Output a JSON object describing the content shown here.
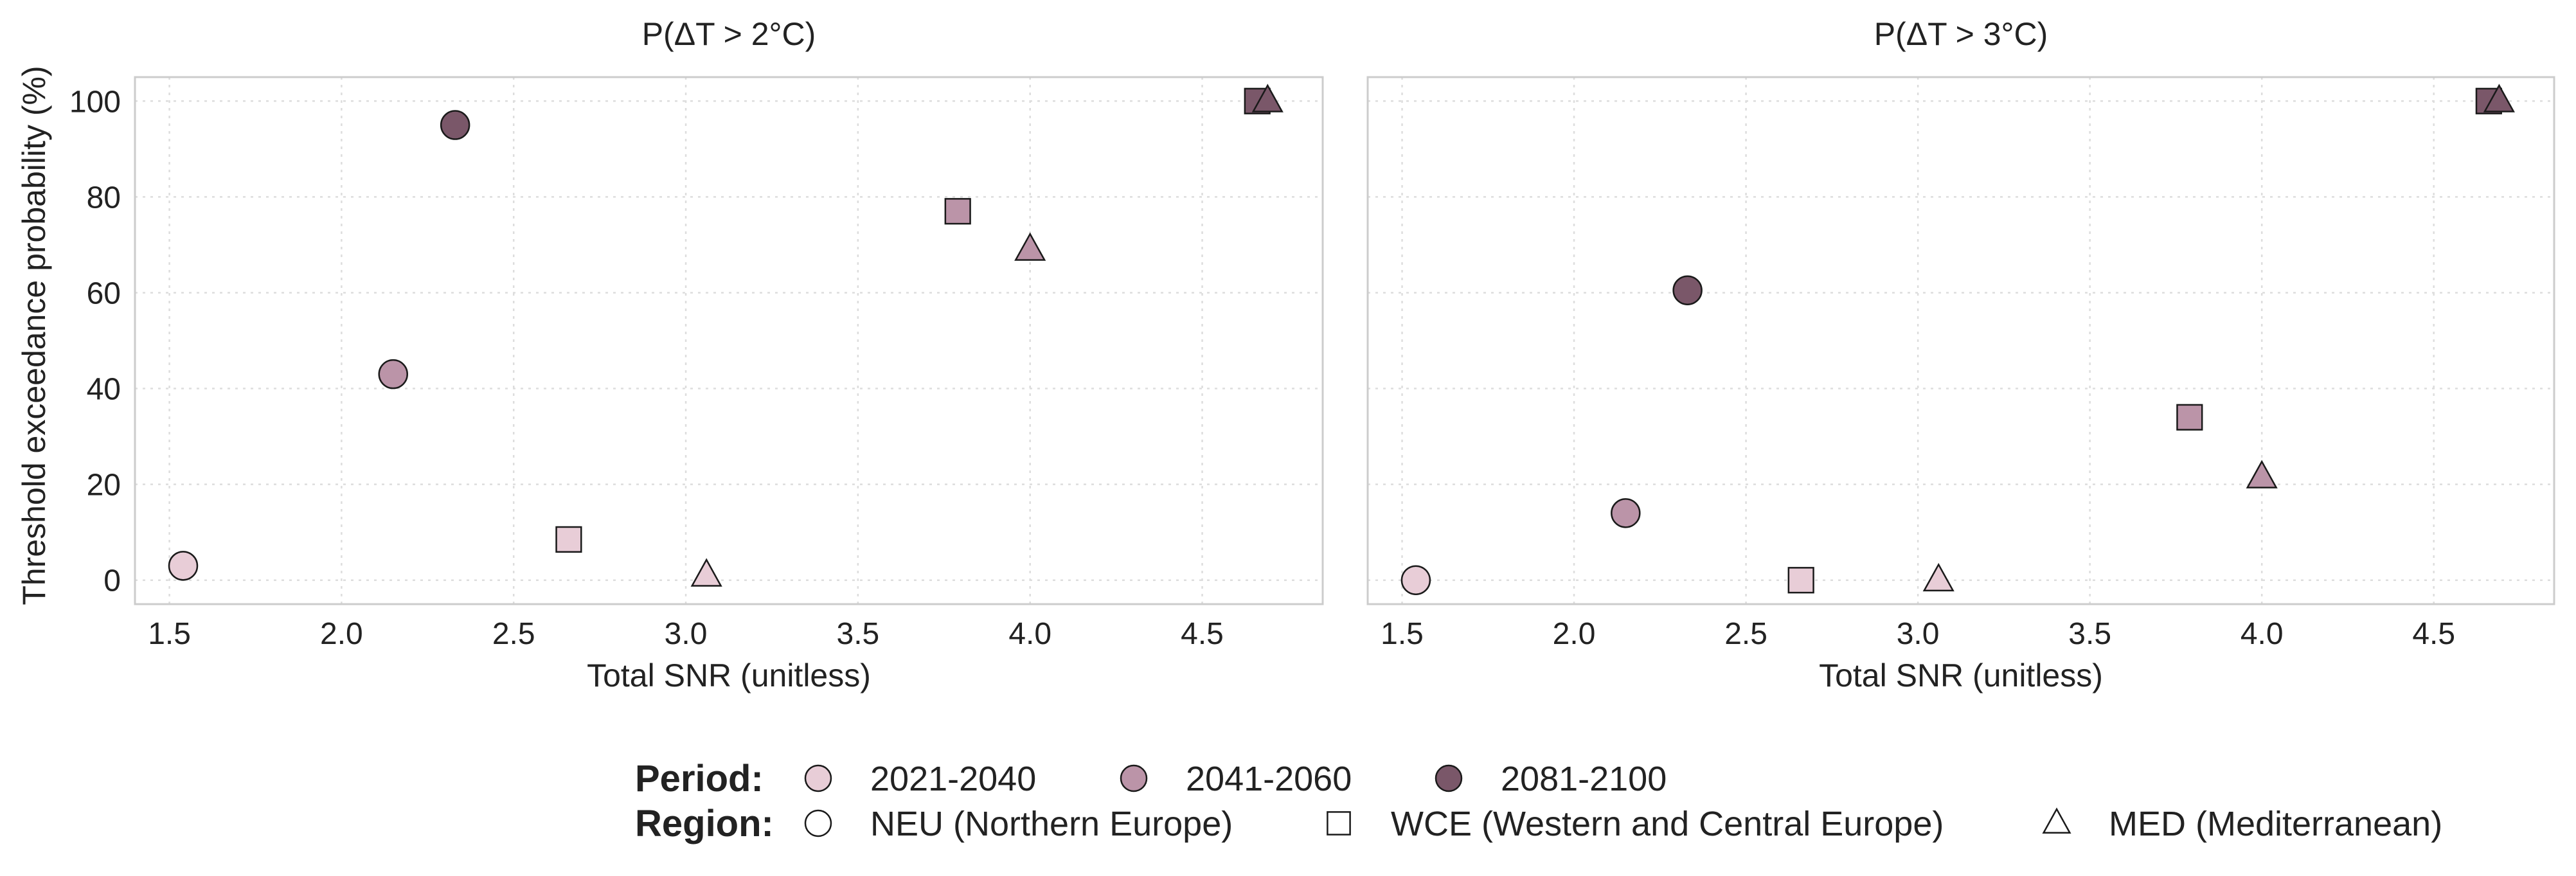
{
  "chart_data": [
    {
      "type": "scatter",
      "title": "P(ΔT > 2°C)",
      "xlabel": "Total SNR (unitless)",
      "ylabel": "Threshold exceedance probability (%)",
      "xlim": [
        1.4,
        4.85
      ],
      "ylim": [
        -5,
        105
      ],
      "x_ticks": [
        1.5,
        2.0,
        2.5,
        3.0,
        3.5,
        4.0,
        4.5
      ],
      "y_ticks": [
        0,
        20,
        40,
        60,
        80,
        100
      ],
      "grid": true,
      "series": [
        {
          "period": "2021-2040",
          "region": "NEU (Northern Europe)",
          "marker": "circle",
          "x": 1.54,
          "y": 3
        },
        {
          "period": "2041-2060",
          "region": "NEU (Northern Europe)",
          "marker": "circle",
          "x": 2.15,
          "y": 43
        },
        {
          "period": "2081-2100",
          "region": "NEU (Northern Europe)",
          "marker": "circle",
          "x": 2.33,
          "y": 95
        },
        {
          "period": "2021-2040",
          "region": "WCE (Western and Central Europe)",
          "marker": "square",
          "x": 2.66,
          "y": 8.5
        },
        {
          "period": "2041-2060",
          "region": "WCE (Western and Central Europe)",
          "marker": "square",
          "x": 3.79,
          "y": 77
        },
        {
          "period": "2081-2100",
          "region": "WCE (Western and Central Europe)",
          "marker": "square",
          "x": 4.66,
          "y": 100
        },
        {
          "period": "2021-2040",
          "region": "MED (Mediterranean)",
          "marker": "triangle",
          "x": 3.06,
          "y": 1
        },
        {
          "period": "2041-2060",
          "region": "MED (Mediterranean)",
          "marker": "triangle",
          "x": 4.0,
          "y": 69
        },
        {
          "period": "2081-2100",
          "region": "MED (Mediterranean)",
          "marker": "triangle",
          "x": 4.69,
          "y": 100
        }
      ]
    },
    {
      "type": "scatter",
      "title": "P(ΔT > 3°C)",
      "xlabel": "Total SNR (unitless)",
      "ylabel": "",
      "xlim": [
        1.4,
        4.85
      ],
      "ylim": [
        -5,
        105
      ],
      "x_ticks": [
        1.5,
        2.0,
        2.5,
        3.0,
        3.5,
        4.0,
        4.5
      ],
      "y_ticks": [
        0,
        20,
        40,
        60,
        80,
        100
      ],
      "grid": true,
      "series": [
        {
          "period": "2021-2040",
          "region": "NEU (Northern Europe)",
          "marker": "circle",
          "x": 1.54,
          "y": 0
        },
        {
          "period": "2041-2060",
          "region": "NEU (Northern Europe)",
          "marker": "circle",
          "x": 2.15,
          "y": 14
        },
        {
          "period": "2081-2100",
          "region": "NEU (Northern Europe)",
          "marker": "circle",
          "x": 2.33,
          "y": 60.5
        },
        {
          "period": "2021-2040",
          "region": "WCE (Western and Central Europe)",
          "marker": "square",
          "x": 2.66,
          "y": 0
        },
        {
          "period": "2041-2060",
          "region": "WCE (Western and Central Europe)",
          "marker": "square",
          "x": 3.79,
          "y": 34
        },
        {
          "period": "2081-2100",
          "region": "WCE (Western and Central Europe)",
          "marker": "square",
          "x": 4.66,
          "y": 100
        },
        {
          "period": "2021-2040",
          "region": "MED (Mediterranean)",
          "marker": "triangle",
          "x": 3.06,
          "y": 0
        },
        {
          "period": "2041-2060",
          "region": "MED (Mediterranean)",
          "marker": "triangle",
          "x": 4.0,
          "y": 21.5
        },
        {
          "period": "2081-2100",
          "region": "MED (Mediterranean)",
          "marker": "triangle",
          "x": 4.69,
          "y": 100
        }
      ]
    }
  ],
  "legend": {
    "placement": "bottom-center",
    "period_heading": "Period:",
    "region_heading": "Region:",
    "periods": [
      {
        "label": "2021-2040",
        "color": "#e8cdd7"
      },
      {
        "label": "2041-2060",
        "color": "#bb94a8"
      },
      {
        "label": "2081-2100",
        "color": "#7a5769"
      }
    ],
    "regions": [
      {
        "label": "NEU (Northern Europe)",
        "marker": "circle"
      },
      {
        "label": "WCE (Western and Central Europe)",
        "marker": "square"
      },
      {
        "label": "MED (Mediterranean)",
        "marker": "triangle"
      }
    ]
  }
}
